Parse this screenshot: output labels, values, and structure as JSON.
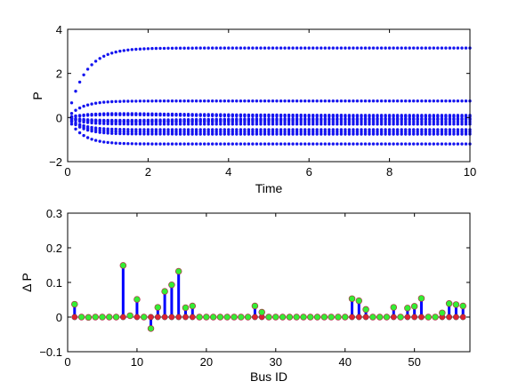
{
  "colors": {
    "traj": "#1414f0",
    "stem": "#0000ff",
    "marker_fill": "#33ee33",
    "base_fill": "#dd2233",
    "axis": "#000000"
  },
  "chart_data": [
    {
      "type": "scatter",
      "xlabel": "Time",
      "ylabel": "P",
      "xlim": [
        0,
        10
      ],
      "ylim": [
        -2,
        4
      ],
      "xticks": [
        "0",
        "2",
        "4",
        "6",
        "8",
        "10"
      ],
      "yticks": [
        "−2",
        "0",
        "2",
        "4"
      ],
      "grid": false,
      "steady_values": [
        3.15,
        0.75,
        0.1,
        0.05,
        -0.05,
        -0.1,
        -0.2,
        -0.3,
        -0.55,
        -0.65,
        -0.75,
        -1.2
      ],
      "time_step": 0.1
    },
    {
      "type": "stem",
      "xlabel": "Bus ID",
      "ylabel": "Δ P",
      "xlim": [
        0,
        58
      ],
      "ylim": [
        -0.1,
        0.3
      ],
      "xticks": [
        "0",
        "10",
        "20",
        "30",
        "40",
        "50"
      ],
      "yticks": [
        "−0.1",
        "0",
        "0.1",
        "0.2",
        "0.3"
      ],
      "grid": false,
      "x": [
        1,
        2,
        3,
        4,
        5,
        6,
        7,
        8,
        9,
        10,
        11,
        12,
        13,
        14,
        15,
        16,
        17,
        18,
        19,
        20,
        21,
        22,
        23,
        24,
        25,
        26,
        27,
        28,
        29,
        30,
        31,
        32,
        33,
        34,
        35,
        36,
        37,
        38,
        39,
        40,
        41,
        42,
        43,
        44,
        45,
        46,
        47,
        48,
        49,
        50,
        51,
        52,
        53,
        54,
        55,
        56,
        57
      ],
      "values": [
        0.037,
        0,
        -0.001,
        0,
        0,
        0,
        0,
        0.149,
        0.004,
        0.051,
        0,
        -0.033,
        0.028,
        0.074,
        0.093,
        0.132,
        0.027,
        0.032,
        0,
        0,
        0,
        0,
        0,
        0,
        0,
        0,
        0.032,
        0.014,
        0,
        0,
        0,
        0,
        0,
        0,
        0,
        0,
        0,
        0,
        0,
        0,
        0.053,
        0.047,
        0.022,
        0,
        0,
        0,
        0.028,
        0,
        0.026,
        0.031,
        0.054,
        0,
        0,
        0.012,
        0.039,
        0.036,
        0.032
      ]
    }
  ]
}
